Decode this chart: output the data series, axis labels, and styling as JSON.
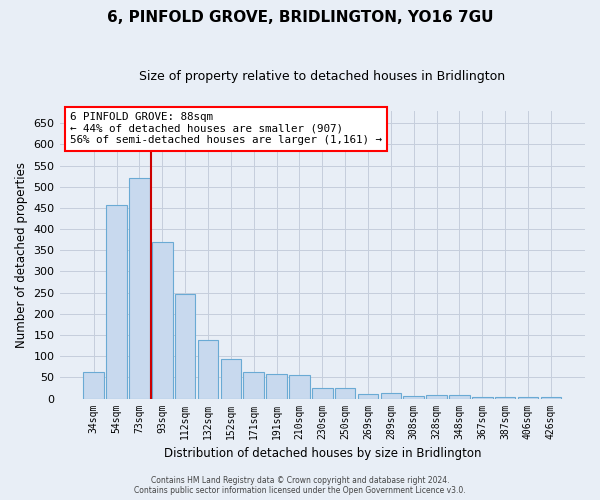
{
  "title": "6, PINFOLD GROVE, BRIDLINGTON, YO16 7GU",
  "subtitle": "Size of property relative to detached houses in Bridlington",
  "xlabel": "Distribution of detached houses by size in Bridlington",
  "ylabel": "Number of detached properties",
  "categories": [
    "34sqm",
    "54sqm",
    "73sqm",
    "93sqm",
    "112sqm",
    "132sqm",
    "152sqm",
    "171sqm",
    "191sqm",
    "210sqm",
    "230sqm",
    "250sqm",
    "269sqm",
    "289sqm",
    "308sqm",
    "328sqm",
    "348sqm",
    "367sqm",
    "387sqm",
    "406sqm",
    "426sqm"
  ],
  "values": [
    62,
    458,
    520,
    370,
    248,
    138,
    93,
    62,
    57,
    55,
    25,
    25,
    11,
    12,
    6,
    8,
    8,
    4,
    4,
    4,
    3
  ],
  "bar_color": "#c8d9ee",
  "bar_edgecolor": "#6aaad4",
  "vline_x": 2.5,
  "vline_color": "#cc0000",
  "ylim": [
    0,
    680
  ],
  "yticks": [
    0,
    50,
    100,
    150,
    200,
    250,
    300,
    350,
    400,
    450,
    500,
    550,
    600,
    650
  ],
  "annotation_title": "6 PINFOLD GROVE: 88sqm",
  "annotation_line1": "← 44% of detached houses are smaller (907)",
  "annotation_line2": "56% of semi-detached houses are larger (1,161) →",
  "footer1": "Contains HM Land Registry data © Crown copyright and database right 2024.",
  "footer2": "Contains public sector information licensed under the Open Government Licence v3.0.",
  "background_color": "#e8eef6",
  "grid_color": "#c5cedc"
}
